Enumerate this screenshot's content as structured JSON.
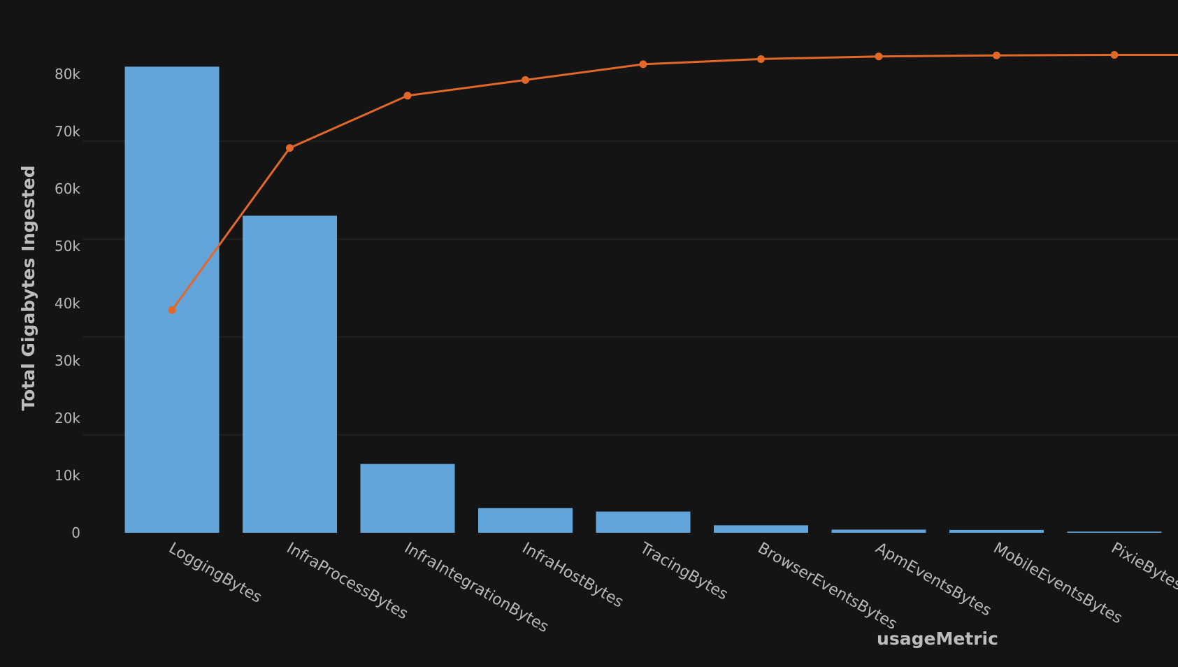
{
  "chart_data": {
    "type": "bar",
    "xlabel": "usageMetric",
    "ylabel": "Total Gigabytes Ingested",
    "categories": [
      "LoggingBytes",
      "InfraProcessBytes",
      "InfraIntegrationBytes",
      "InfraHostBytes",
      "TracingBytes",
      "BrowserEventsBytes",
      "ApmEventsBytes",
      "MobileEventsBytes",
      "PixieBytes"
    ],
    "ylim": [
      0,
      85000
    ],
    "yticks": [
      0,
      10000,
      20000,
      30000,
      40000,
      50000,
      60000,
      70000,
      80000
    ],
    "ytick_labels": [
      "0",
      "10k",
      "20k",
      "30k",
      "40k",
      "50k",
      "60k",
      "70k",
      "80k"
    ],
    "grid": true,
    "series": [
      {
        "type": "bar",
        "color": "#63a5da",
        "values": [
          81300,
          55300,
          12000,
          4300,
          3700,
          1300,
          550,
          500,
          200
        ]
      },
      {
        "type": "line",
        "color": "#e2682a",
        "cumulative_percent": [
          49,
          80,
          90,
          93,
          96,
          97,
          97.5,
          97.7,
          97.8
        ]
      }
    ]
  }
}
